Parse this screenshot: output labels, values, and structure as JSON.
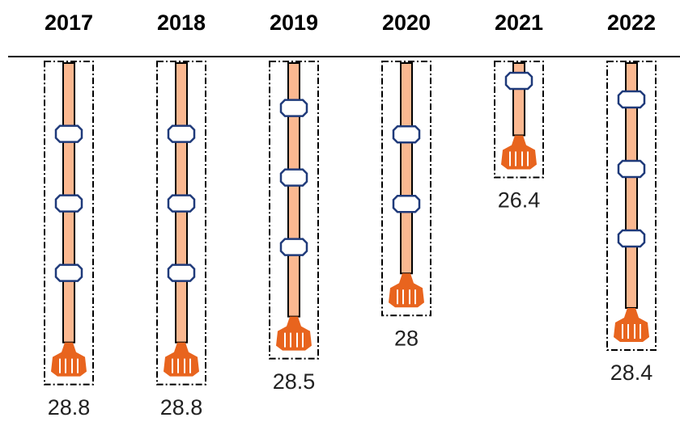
{
  "chart_data": {
    "type": "bar",
    "inverted": true,
    "categories": [
      "2017",
      "2018",
      "2019",
      "2020",
      "2021",
      "2022"
    ],
    "values": [
      28.8,
      28.8,
      28.5,
      28.0,
      26.4,
      28.4
    ],
    "ylim": [
      25,
      29
    ],
    "color": "#fbb890",
    "bit_color": "#e8641e",
    "joint_color": "#1f3a7a"
  }
}
